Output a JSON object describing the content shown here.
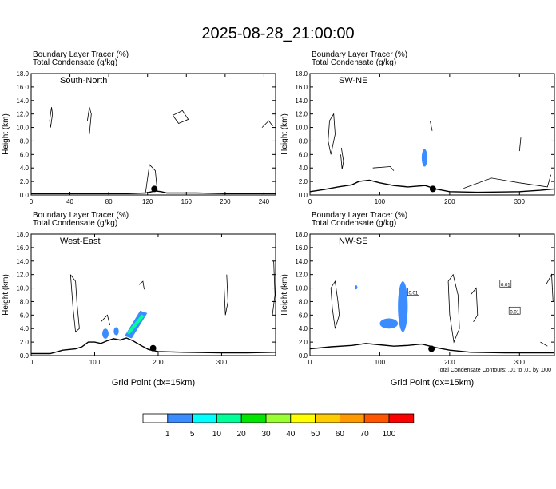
{
  "title": "2025-08-28_21:00:00",
  "footnote": "Total Condensate Contours: .01 to .01 by .000",
  "colorbar": {
    "colors": [
      "#ffffff",
      "#3a8cff",
      "#00ffff",
      "#00ff99",
      "#00e600",
      "#99ff33",
      "#ffff00",
      "#ffcc00",
      "#ff9900",
      "#ff5500",
      "#ff0000"
    ],
    "labels": [
      "1",
      "5",
      "10",
      "20",
      "30",
      "40",
      "50",
      "60",
      "70",
      "100"
    ]
  },
  "chart_data": [
    {
      "type": "contour",
      "panel_label": "South-North",
      "title_line1": "Boundary Layer Tracer   (%)",
      "title_line2": "Total Condensate   (g/kg)",
      "ylabel": "Height (km)",
      "xlabel": "",
      "xlim": [
        0,
        252
      ],
      "ylim": [
        0,
        18
      ],
      "xticks": [
        "0",
        "40",
        "80",
        "120",
        "160",
        "200",
        "240"
      ],
      "yticks": [
        "0.0",
        "2.0",
        "4.0",
        "6.0",
        "8.0",
        "10.0",
        "12.0",
        "14.0",
        "16.0",
        "18.0"
      ],
      "terrain": [
        [
          0,
          0.2
        ],
        [
          60,
          0.2
        ],
        [
          100,
          0.2
        ],
        [
          118,
          0.3
        ],
        [
          128,
          0.6
        ],
        [
          134,
          0.5
        ],
        [
          140,
          0.3
        ],
        [
          170,
          0.3
        ],
        [
          200,
          0.2
        ],
        [
          252,
          0.2
        ]
      ],
      "marker": [
        127,
        0.9
      ],
      "tracer_blobs": []
    },
    {
      "type": "contour",
      "panel_label": "SW-NE",
      "title_line1": "Boundary Layer Tracer   (%)",
      "title_line2": "Total Condensate   (g/kg)",
      "ylabel": "Height (km)",
      "xlabel": "",
      "xlim": [
        0,
        350
      ],
      "ylim": [
        0,
        18
      ],
      "xticks": [
        "0",
        "100",
        "200",
        "300"
      ],
      "yticks": [
        "0.0",
        "2.0",
        "4.0",
        "6.0",
        "8.0",
        "10.0",
        "12.0",
        "14.0",
        "16.0",
        "18.0"
      ],
      "terrain": [
        [
          0,
          0.5
        ],
        [
          20,
          0.8
        ],
        [
          40,
          1.2
        ],
        [
          60,
          1.5
        ],
        [
          70,
          2.0
        ],
        [
          85,
          2.2
        ],
        [
          100,
          1.8
        ],
        [
          120,
          1.4
        ],
        [
          140,
          1.2
        ],
        [
          165,
          1.4
        ],
        [
          180,
          0.9
        ],
        [
          200,
          0.5
        ],
        [
          240,
          0.4
        ],
        [
          300,
          0.5
        ],
        [
          330,
          0.7
        ],
        [
          350,
          0.9
        ]
      ],
      "marker": [
        176,
        0.9
      ],
      "tracer_blobs": [
        {
          "x": [
            160,
            168
          ],
          "y": [
            4.2,
            6.8
          ],
          "level": "5"
        }
      ]
    },
    {
      "type": "contour",
      "panel_label": "West-East",
      "title_line1": "Boundary Layer Tracer   (%)",
      "title_line2": "Total Condensate   (g/kg)",
      "ylabel": "Height (km)",
      "xlabel": "Grid Point (dx=15km)",
      "xlim": [
        0,
        385
      ],
      "ylim": [
        0,
        18
      ],
      "xticks": [
        "0",
        "100",
        "200",
        "300"
      ],
      "yticks": [
        "0.0",
        "2.0",
        "4.0",
        "6.0",
        "8.0",
        "10.0",
        "12.0",
        "14.0",
        "16.0",
        "18.0"
      ],
      "terrain": [
        [
          0,
          0.3
        ],
        [
          30,
          0.3
        ],
        [
          50,
          0.8
        ],
        [
          70,
          1.0
        ],
        [
          80,
          1.3
        ],
        [
          90,
          2.0
        ],
        [
          100,
          2.0
        ],
        [
          110,
          1.8
        ],
        [
          120,
          2.2
        ],
        [
          130,
          2.5
        ],
        [
          140,
          2.3
        ],
        [
          150,
          2.6
        ],
        [
          160,
          2.2
        ],
        [
          175,
          1.4
        ],
        [
          185,
          0.9
        ],
        [
          200,
          0.6
        ],
        [
          240,
          0.5
        ],
        [
          300,
          0.4
        ],
        [
          340,
          0.4
        ],
        [
          385,
          0.5
        ]
      ],
      "marker": [
        192,
        1.1
      ],
      "tracer_blobs": [
        {
          "x": [
            112,
            122
          ],
          "y": [
            2.5,
            4.0
          ],
          "level": "5"
        },
        {
          "x": [
            130,
            138
          ],
          "y": [
            3.0,
            4.2
          ],
          "level": "5"
        },
        {
          "x": [
            150,
            180
          ],
          "y": [
            3.0,
            6.2
          ],
          "level": "20"
        }
      ]
    },
    {
      "type": "contour",
      "panel_label": "NW-SE",
      "title_line1": "Boundary Layer Tracer   (%)",
      "title_line2": "Total Condensate   (g/kg)",
      "ylabel": "Height (km)",
      "xlabel": "Grid Point (dx=15km)",
      "xlim": [
        0,
        350
      ],
      "ylim": [
        0,
        18
      ],
      "xticks": [
        "0",
        "100",
        "200",
        "300"
      ],
      "yticks": [
        "0.0",
        "2.0",
        "4.0",
        "6.0",
        "8.0",
        "10.0",
        "12.0",
        "14.0",
        "16.0",
        "18.0"
      ],
      "terrain": [
        [
          0,
          1.0
        ],
        [
          30,
          1.3
        ],
        [
          60,
          1.5
        ],
        [
          80,
          1.8
        ],
        [
          100,
          1.6
        ],
        [
          120,
          1.4
        ],
        [
          140,
          1.5
        ],
        [
          160,
          1.7
        ],
        [
          180,
          1.2
        ],
        [
          200,
          0.8
        ],
        [
          230,
          0.5
        ],
        [
          280,
          0.4
        ],
        [
          350,
          0.4
        ]
      ],
      "marker": [
        174,
        1.0
      ],
      "tracer_blobs": [
        {
          "x": [
            126,
            140
          ],
          "y": [
            3.5,
            11.0
          ],
          "level": "5"
        },
        {
          "x": [
            100,
            126
          ],
          "y": [
            4.0,
            5.5
          ],
          "level": "5"
        },
        {
          "x": [
            64,
            68
          ],
          "y": [
            9.8,
            10.4
          ],
          "level": "5"
        }
      ],
      "contour_labels": [
        {
          "text": "0.01",
          "x": 293,
          "y": 6.6
        },
        {
          "text": "0.01",
          "x": 280,
          "y": 10.6
        },
        {
          "text": "0.01",
          "x": 148,
          "y": 9.4
        }
      ]
    }
  ]
}
